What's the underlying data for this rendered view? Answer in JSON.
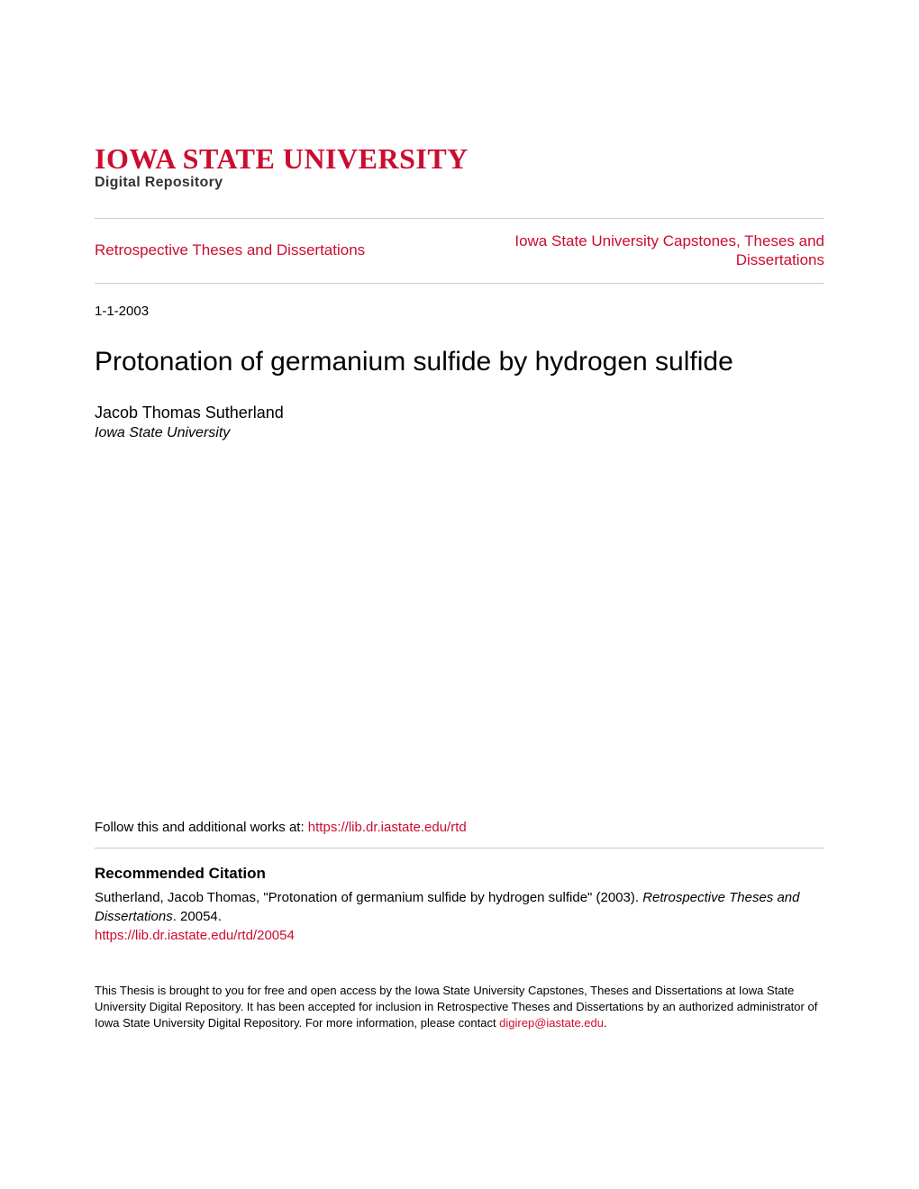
{
  "header": {
    "university": "IOWA STATE UNIVERSITY",
    "subtitle": "Digital Repository",
    "university_color": "#cc0c2f",
    "university_fontsize": 32,
    "subtitle_fontsize": 16
  },
  "nav": {
    "left": "Retrospective Theses and Dissertations",
    "right": "Iowa State University Capstones, Theses and Dissertations",
    "link_color": "#cc0c2f",
    "fontsize": 17,
    "border_color": "#cccccc"
  },
  "metadata": {
    "date": "1-1-2003",
    "title": "Protonation of germanium sulfide by hydrogen sulfide",
    "title_fontsize": 30,
    "author": "Jacob Thomas Sutherland",
    "affiliation": "Iowa State University"
  },
  "follow": {
    "prefix": "Follow this and additional works at: ",
    "url": "https://lib.dr.iastate.edu/rtd"
  },
  "citation": {
    "heading": "Recommended Citation",
    "text_part1": "Sutherland, Jacob Thomas, \"Protonation of germanium sulfide by hydrogen sulfide\" (2003). ",
    "text_italic": "Retrospective Theses and Dissertations",
    "text_part2": ". 20054.",
    "permalink": "https://lib.dr.iastate.edu/rtd/20054"
  },
  "disclaimer": {
    "text": "This Thesis is brought to you for free and open access by the Iowa State University Capstones, Theses and Dissertations at Iowa State University Digital Repository. It has been accepted for inclusion in Retrospective Theses and Dissertations by an authorized administrator of Iowa State University Digital Repository. For more information, please contact ",
    "contact": "digirep@iastate.edu",
    "period": "."
  },
  "colors": {
    "background": "#ffffff",
    "text": "#000000",
    "link": "#cc0c2f",
    "border": "#cccccc"
  }
}
